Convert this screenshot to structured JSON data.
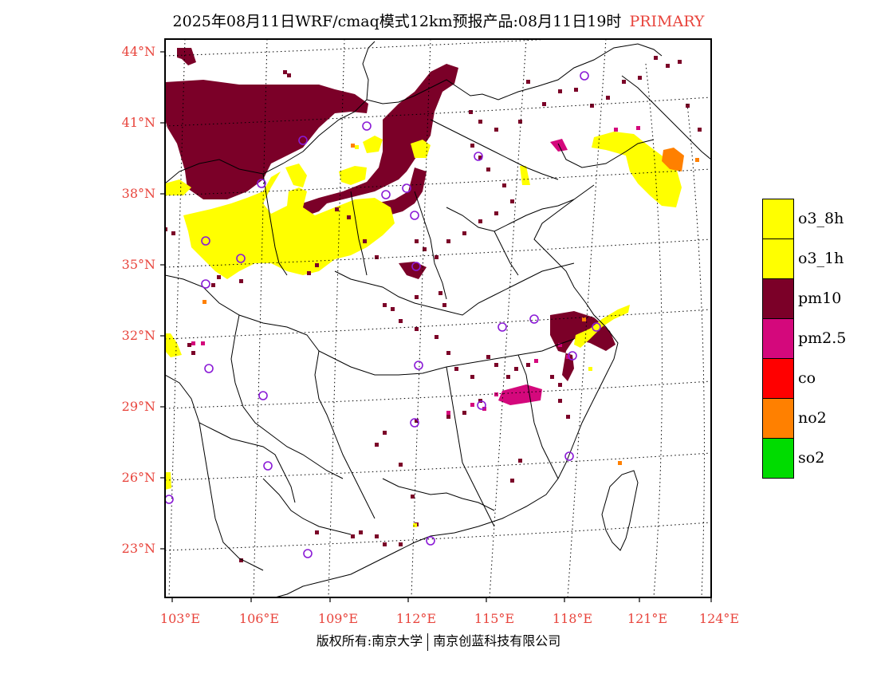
{
  "title": {
    "text": "2025年08月11日WRF/cmaq模式12km预报产品:08月11日19时",
    "status": "PRIMARY",
    "status_color": "#e8443c"
  },
  "axes": {
    "lat_labels": [
      "44°N",
      "41°N",
      "38°N",
      "35°N",
      "32°N",
      "29°N",
      "26°N",
      "23°N"
    ],
    "lon_labels": [
      "103°E",
      "106°E",
      "109°E",
      "112°E",
      "115°E",
      "118°E",
      "121°E",
      "124°E"
    ],
    "label_color": "#e8443c"
  },
  "legend": {
    "items": [
      {
        "label": "o3_8h",
        "color": "#ffff00"
      },
      {
        "label": "o3_1h",
        "color": "#ffff00"
      },
      {
        "label": "pm10",
        "color": "#7b0028"
      },
      {
        "label": "pm2.5",
        "color": "#d4087c"
      },
      {
        "label": "co",
        "color": "#ff0000"
      },
      {
        "label": "no2",
        "color": "#ff8000"
      },
      {
        "label": "so2",
        "color": "#00dc00"
      }
    ]
  },
  "colors": {
    "pm10": "#7b0028",
    "o3": "#ffff00",
    "pm25": "#d4087c",
    "no2": "#ff8000",
    "station_marker": "#8a1ad6",
    "boundary": "#000000"
  },
  "copyright": {
    "left": "版权所有:南京大学",
    "right": "南京创蓝科技有限公司"
  }
}
